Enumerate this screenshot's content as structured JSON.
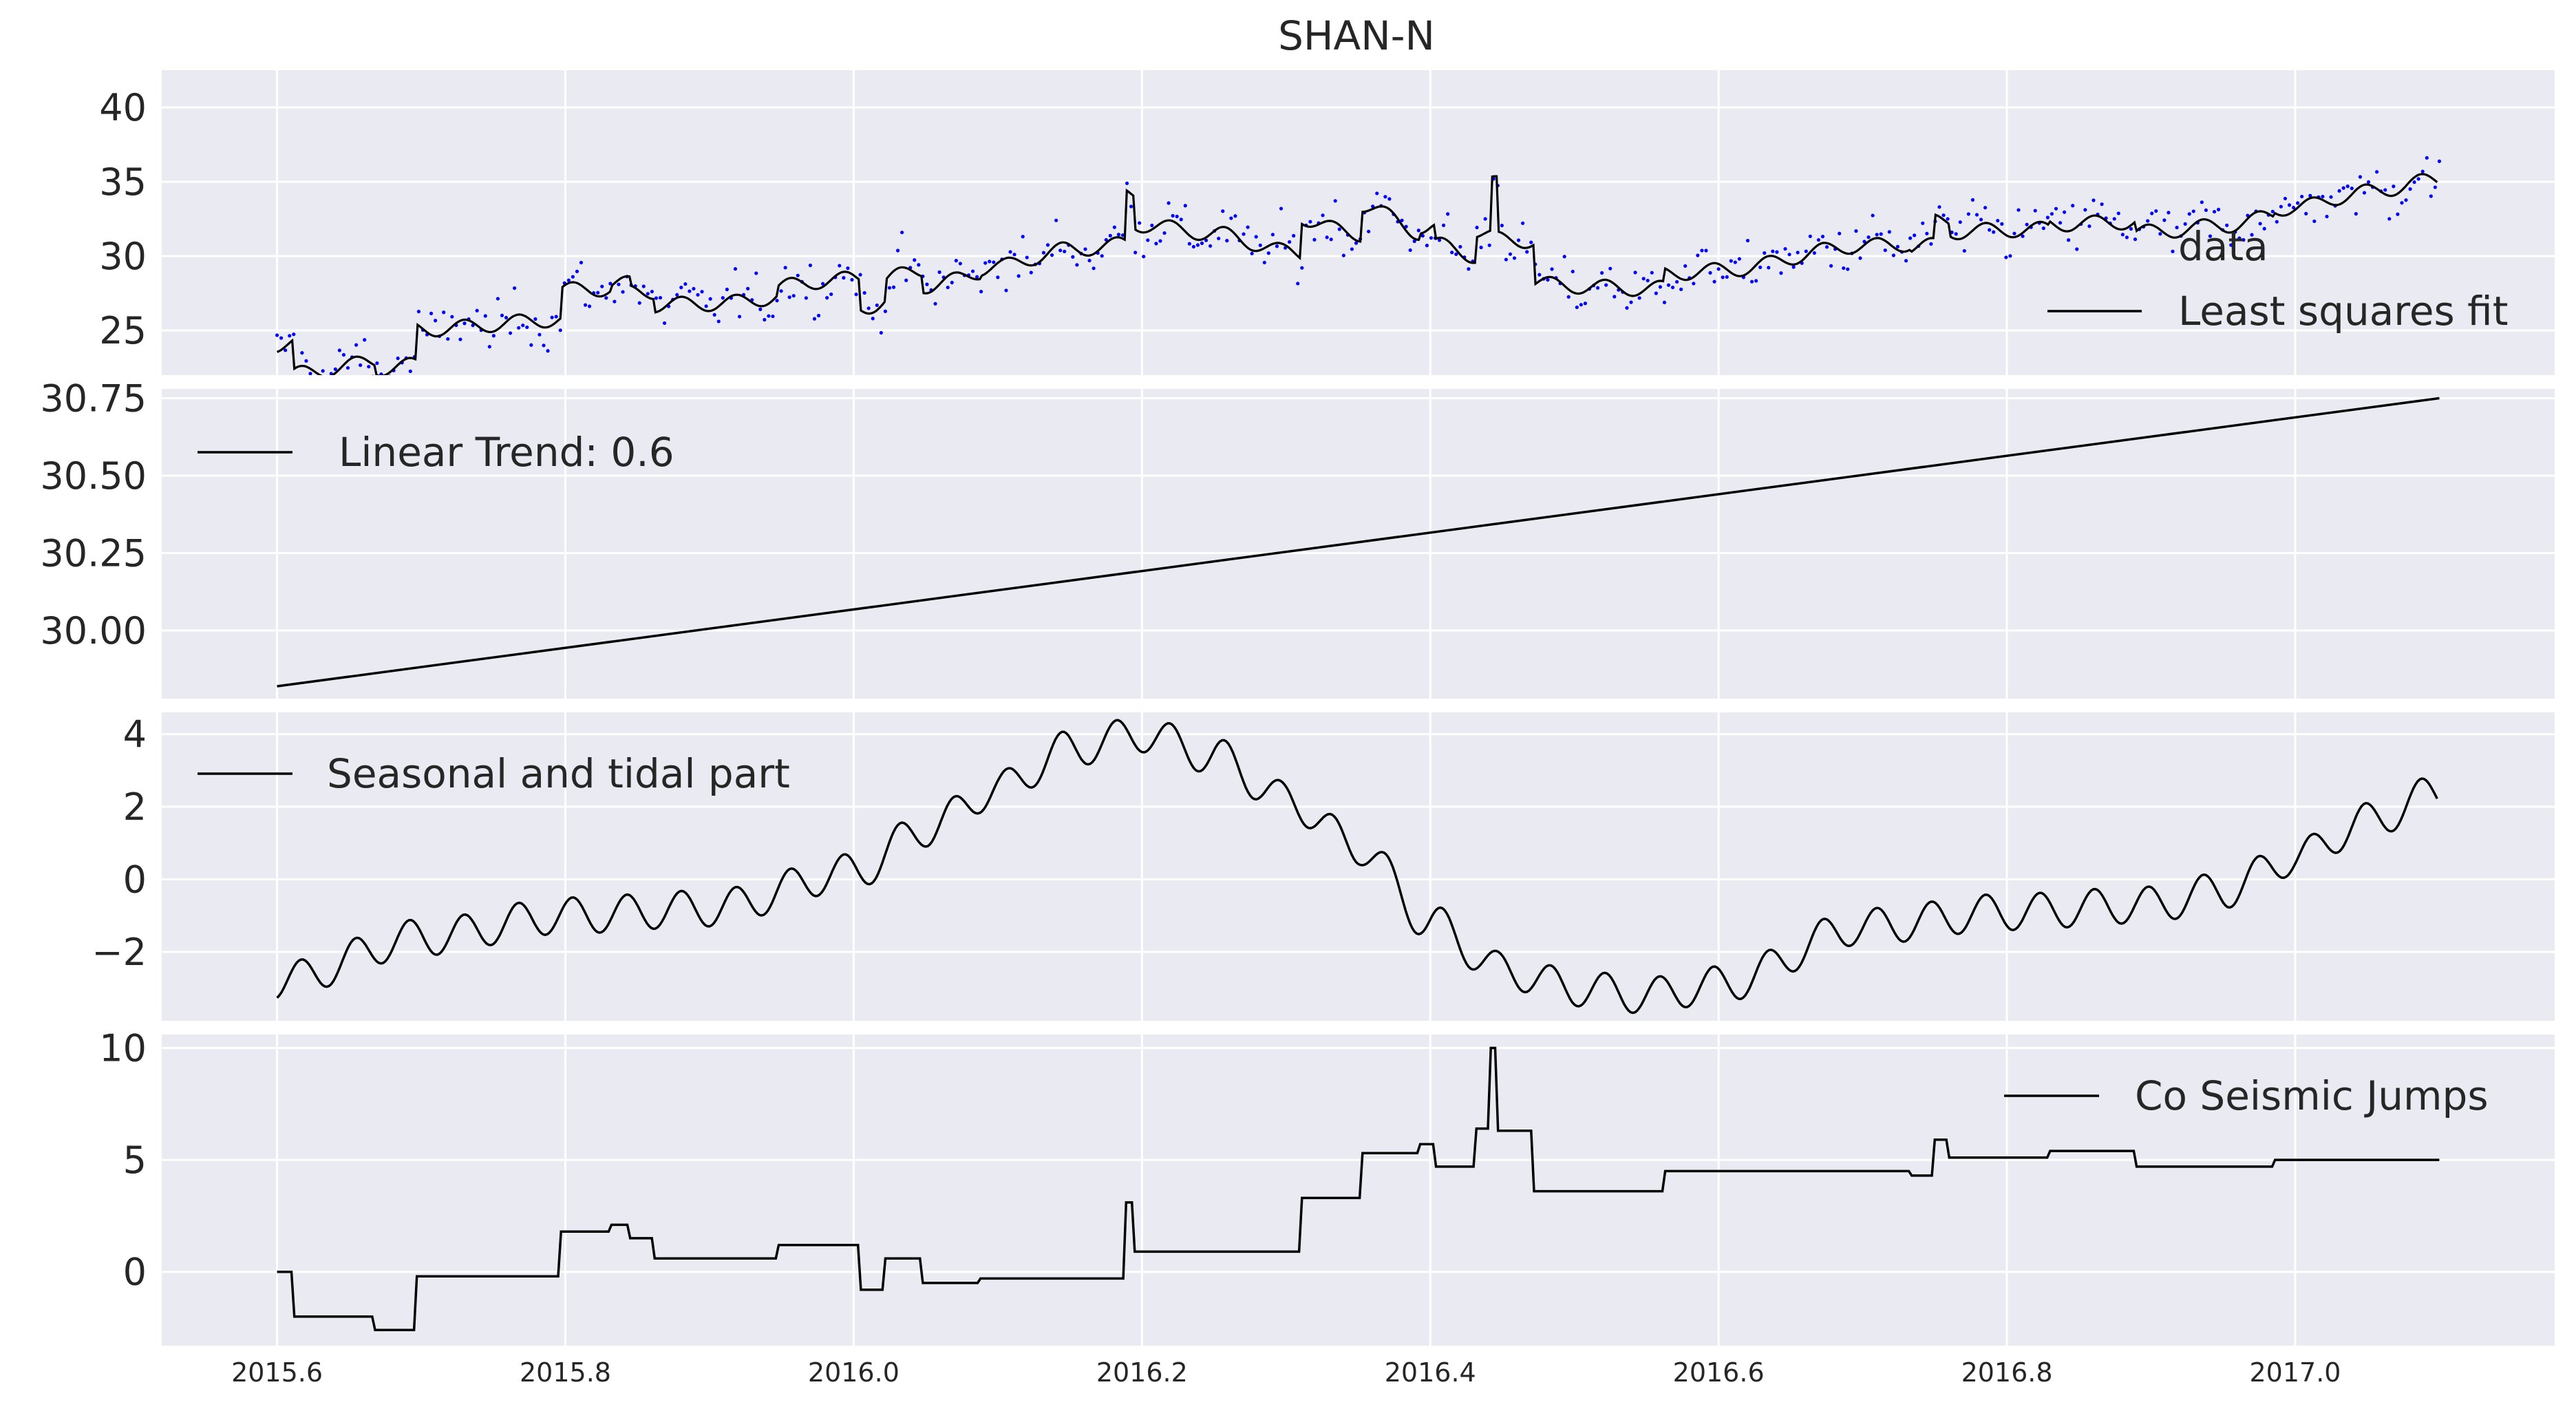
{
  "figure_title": "SHAN-N",
  "colors": {
    "axes_bg": "#EAEAF2",
    "grid": "#FFFFFF",
    "line": "#000000",
    "data_points": "#0000FF",
    "text": "#262626"
  },
  "chart_data": [
    {
      "type": "line",
      "title": "SHAN-N",
      "xlim": [
        2015.52,
        2017.18
      ],
      "ylim": [
        22.0,
        42.5
      ],
      "x_ticks": [
        2015.6,
        2015.8,
        2016.0,
        2016.2,
        2016.4,
        2016.6,
        2016.8,
        2017.0
      ],
      "x_tick_labels": [
        "2015.6",
        "2015.8",
        "2016.0",
        "2016.2",
        "2016.4",
        "2016.6",
        "2016.8",
        "2017.0"
      ],
      "x_tick_labels_visible": false,
      "y_ticks": [
        25,
        30,
        35,
        40
      ],
      "y_tick_labels": [
        "25",
        "30",
        "35",
        "40"
      ],
      "grid": true,
      "legend_position": "right",
      "series": [
        {
          "name": "data",
          "kind": "scatter",
          "color": "#0000FF",
          "description_points": "daily observations scattered around the fit with spread of about +/-3",
          "x_start": 2015.6,
          "x_end": 2017.1,
          "count": 520
        },
        {
          "name": "Least squares fit",
          "kind": "line",
          "color": "#000000",
          "note": "sum of linear trend, seasonal and tidal part, and co-seismic jumps"
        }
      ]
    },
    {
      "type": "line",
      "xlim": [
        2015.52,
        2017.18
      ],
      "ylim": [
        29.78,
        30.78
      ],
      "x_ticks": [
        2015.6,
        2015.8,
        2016.0,
        2016.2,
        2016.4,
        2016.6,
        2016.8,
        2017.0
      ],
      "x_tick_labels_visible": false,
      "y_ticks": [
        30.0,
        30.25,
        30.5,
        30.75
      ],
      "y_tick_labels": [
        "30.00",
        "30.25",
        "30.50",
        "30.75"
      ],
      "grid": true,
      "legend_position": "top-left",
      "series": [
        {
          "name": "Linear Trend: 0.6",
          "x": [
            2015.6,
            2017.1
          ],
          "y": [
            29.82,
            30.75
          ]
        }
      ]
    },
    {
      "type": "line",
      "xlim": [
        2015.52,
        2017.18
      ],
      "ylim": [
        -3.9,
        4.6
      ],
      "x_ticks": [
        2015.6,
        2015.8,
        2016.0,
        2016.2,
        2016.4,
        2016.6,
        2016.8,
        2017.0
      ],
      "x_tick_labels_visible": false,
      "y_ticks": [
        -2,
        0,
        2,
        4
      ],
      "y_tick_labels": [
        "−2",
        "0",
        "2",
        "4"
      ],
      "grid": true,
      "legend_position": "top-left",
      "series": [
        {
          "name": "Seasonal and tidal part",
          "x": [
            2015.6,
            2015.7,
            2015.8,
            2015.9,
            2016.0,
            2016.05,
            2016.1,
            2016.15,
            2016.2,
            2016.25,
            2016.3,
            2016.35,
            2016.4,
            2016.45,
            2016.5,
            2016.55,
            2016.6,
            2016.7,
            2016.8,
            2016.9,
            2016.95,
            2017.0,
            2017.05,
            2017.1
          ],
          "y": [
            -2.8,
            -1.6,
            -1.0,
            -0.8,
            0.2,
            1.4,
            2.5,
            3.6,
            4.0,
            3.4,
            2.2,
            0.9,
            -1.2,
            -2.5,
            -3.0,
            -3.2,
            -2.9,
            -1.3,
            -0.9,
            -0.7,
            -0.3,
            0.6,
            1.6,
            2.4
          ],
          "tidal_ripple_amplitude": 0.5,
          "tidal_period_years": 0.0377
        }
      ]
    },
    {
      "type": "line",
      "xlim": [
        2015.52,
        2017.18
      ],
      "ylim": [
        -3.3,
        10.6
      ],
      "x_ticks": [
        2015.6,
        2015.8,
        2016.0,
        2016.2,
        2016.4,
        2016.6,
        2016.8,
        2017.0
      ],
      "x_tick_labels": [
        "2015.6",
        "2015.8",
        "2016.0",
        "2016.2",
        "2016.4",
        "2016.6",
        "2016.8",
        "2017.0"
      ],
      "x_tick_labels_visible": true,
      "y_ticks": [
        0,
        5,
        10
      ],
      "y_tick_labels": [
        "0",
        "5",
        "10"
      ],
      "grid": true,
      "legend_position": "top-right",
      "series": [
        {
          "name": "Co Seismic Jumps",
          "steps": [
            [
              2015.6,
              0.0
            ],
            [
              2015.612,
              -2.0
            ],
            [
              2015.668,
              -2.6
            ],
            [
              2015.697,
              -0.2
            ],
            [
              2015.797,
              1.8
            ],
            [
              2015.832,
              2.1
            ],
            [
              2015.845,
              1.5
            ],
            [
              2015.862,
              0.6
            ],
            [
              2015.948,
              1.2
            ],
            [
              2016.005,
              -0.8
            ],
            [
              2016.022,
              0.6
            ],
            [
              2016.048,
              -0.5
            ],
            [
              2016.088,
              -0.3
            ],
            [
              2016.189,
              3.1
            ],
            [
              2016.195,
              0.9
            ],
            [
              2016.311,
              3.3
            ],
            [
              2016.353,
              5.3
            ],
            [
              2016.393,
              5.7
            ],
            [
              2016.404,
              4.7
            ],
            [
              2016.432,
              6.4
            ],
            [
              2016.442,
              10.0
            ],
            [
              2016.447,
              6.3
            ],
            [
              2016.472,
              3.6
            ],
            [
              2016.563,
              4.5
            ],
            [
              2016.734,
              4.3
            ],
            [
              2016.75,
              5.9
            ],
            [
              2016.76,
              5.1
            ],
            [
              2016.83,
              5.4
            ],
            [
              2016.89,
              4.7
            ],
            [
              2016.986,
              5.0
            ],
            [
              2017.1,
              5.0
            ]
          ]
        }
      ]
    }
  ]
}
